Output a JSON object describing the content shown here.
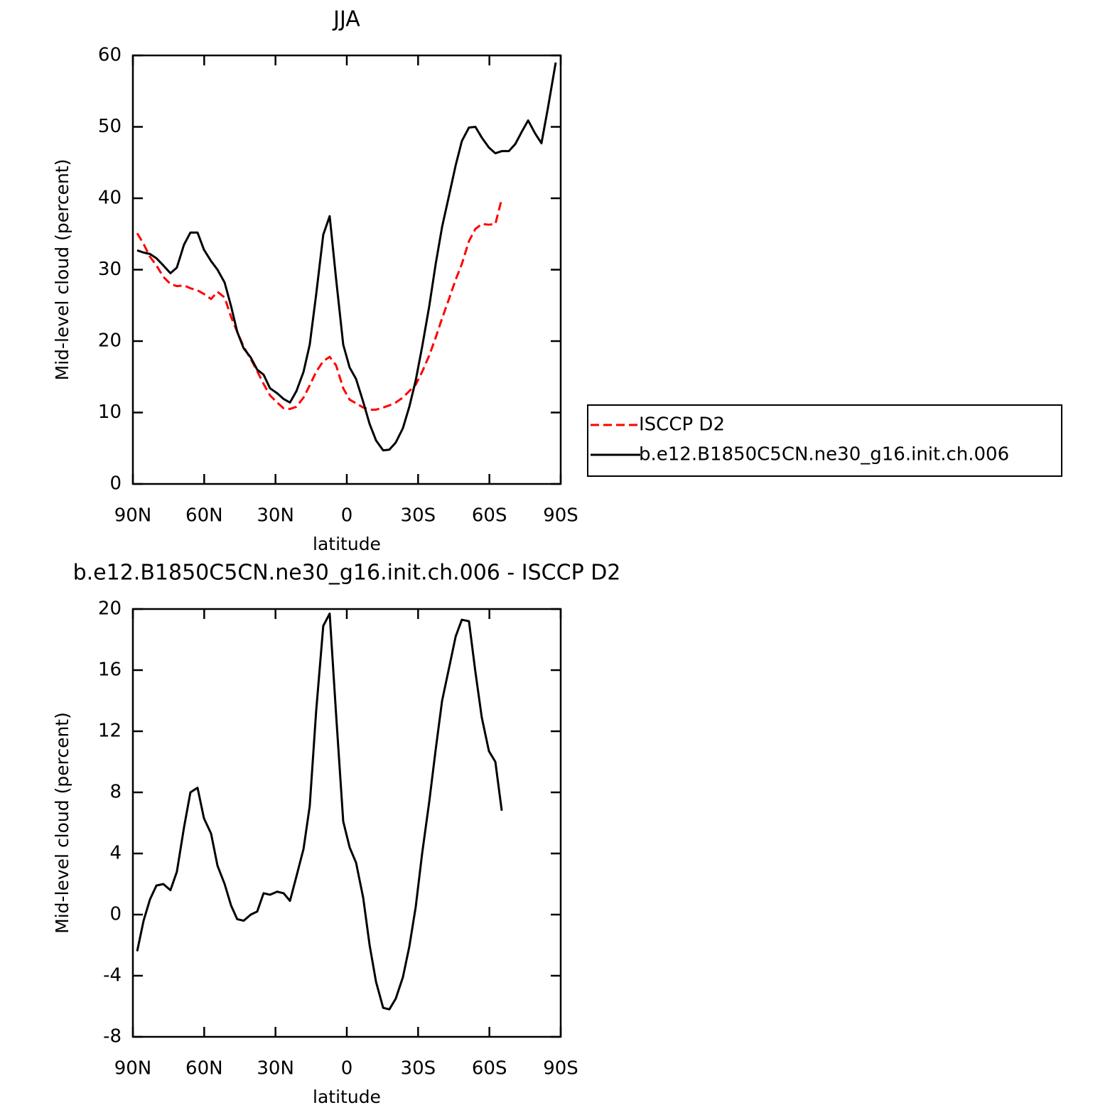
{
  "chart_data": [
    {
      "type": "line",
      "title": "JJA",
      "xlabel": "latitude",
      "ylabel": "Mid-level cloud (percent)",
      "x": [
        88.2,
        85.5,
        82.8,
        80.1,
        77.2,
        74.2,
        71.5,
        68.5,
        65.8,
        62.8,
        60.1,
        57.1,
        54.4,
        51.4,
        48.7,
        46.1,
        43.4,
        40.4,
        37.7,
        35.0,
        32.3,
        29.3,
        26.6,
        23.9,
        21.2,
        18.2,
        15.6,
        12.9,
        9.9,
        7.2,
        4.5,
        1.5,
        -1.2,
        -3.9,
        -6.9,
        -9.6,
        -12.3,
        -15.3,
        -17.9,
        -20.6,
        -23.6,
        -26.3,
        -29.0,
        -31.7,
        -34.7,
        -37.4,
        -40.1,
        -43.1,
        -45.8,
        -48.4,
        -51.4,
        -54.1,
        -56.8,
        -59.8,
        -62.5,
        -65.2,
        -68.2,
        -70.9,
        -73.6,
        -76.3,
        -79.2,
        -81.9,
        -84.6,
        -87.9
      ],
      "series": [
        {
          "name": "ISCCP D2",
          "color": "#ff0000",
          "dashed": true,
          "values": [
            35.1,
            33.6,
            31.8,
            30.6,
            29.0,
            28.0,
            27.7,
            27.8,
            27.4,
            27.1,
            26.6,
            25.9,
            26.9,
            26.1,
            23.4,
            21.3,
            19.2,
            17.5,
            15.8,
            14.0,
            12.4,
            11.4,
            10.6,
            10.5,
            10.8,
            12.1,
            13.8,
            15.7,
            17.2,
            17.8,
            16.6,
            13.4,
            11.8,
            11.3,
            10.7,
            10.4,
            10.4,
            10.7,
            11.0,
            11.4,
            12.1,
            13.0,
            13.9,
            15.7,
            18.0,
            20.5,
            23.2,
            26.0,
            28.6,
            30.8,
            34.0,
            35.7,
            36.4,
            36.3,
            36.4,
            39.9,
            null,
            null,
            null,
            null,
            null,
            null,
            null,
            null
          ]
        },
        {
          "name": "b.e12.B1850C5CN.ne30_g16.init.ch.006",
          "color": "#000000",
          "dashed": false,
          "values": [
            32.7,
            32.4,
            32.2,
            31.6,
            30.6,
            29.5,
            30.3,
            33.5,
            35.2,
            35.2,
            32.8,
            31.2,
            30.0,
            28.2,
            24.9,
            21.3,
            19.0,
            17.7,
            16.0,
            15.3,
            13.4,
            12.7,
            11.9,
            11.4,
            13.0,
            15.7,
            19.5,
            26.5,
            34.9,
            37.5,
            28.7,
            19.5,
            16.3,
            14.7,
            11.5,
            8.4,
            6.1,
            4.7,
            4.8,
            5.8,
            7.8,
            10.8,
            14.5,
            19.2,
            24.9,
            30.8,
            36.0,
            40.5,
            44.6,
            48.0,
            49.9,
            50.0,
            48.5,
            47.1,
            46.3,
            46.6,
            46.6,
            47.6,
            49.3,
            50.9,
            49.1,
            47.7,
            52.6,
            59.0
          ]
        }
      ],
      "xlim": [
        90,
        -90
      ],
      "xticks": [
        {
          "value": 90,
          "label": "90N"
        },
        {
          "value": 60,
          "label": "60N"
        },
        {
          "value": 30,
          "label": "30N"
        },
        0,
        {
          "value": -30,
          "label": "30S"
        },
        {
          "value": -60,
          "label": "60S"
        },
        {
          "value": -90,
          "label": "90S"
        }
      ],
      "ylim": [
        0,
        60
      ],
      "yticks": [
        0,
        10,
        20,
        30,
        40,
        50,
        60
      ],
      "grid": false,
      "legend": "right"
    },
    {
      "type": "line",
      "title": "b.e12.B1850C5CN.ne30_g16.init.ch.006 - ISCCP D2",
      "xlabel": "latitude",
      "ylabel": "Mid-level cloud (percent)",
      "x": [
        88.2,
        85.5,
        82.8,
        80.1,
        77.2,
        74.2,
        71.5,
        68.5,
        65.8,
        62.8,
        60.1,
        57.1,
        54.4,
        51.4,
        48.7,
        46.1,
        43.4,
        40.4,
        37.7,
        35.0,
        32.3,
        29.3,
        26.6,
        23.9,
        21.2,
        18.2,
        15.6,
        12.9,
        9.9,
        7.2,
        4.5,
        1.5,
        -1.2,
        -3.9,
        -6.9,
        -9.6,
        -12.3,
        -15.3,
        -17.9,
        -20.6,
        -23.6,
        -26.3,
        -29.0,
        -31.7,
        -34.7,
        -37.4,
        -40.1,
        -43.1,
        -45.8,
        -48.4,
        -51.4,
        -54.1,
        -56.8,
        -59.8,
        -62.5,
        -65.2,
        -68.2,
        -70.9,
        -73.6,
        -76.3,
        -79.2,
        -81.9,
        -84.6,
        -87.9
      ],
      "values": [
        -2.4,
        -0.4,
        1.0,
        1.9,
        2.0,
        1.6,
        2.8,
        5.7,
        8.0,
        8.3,
        6.3,
        5.3,
        3.2,
        2.0,
        0.6,
        -0.3,
        -0.4,
        0.0,
        0.2,
        1.4,
        1.3,
        1.5,
        1.4,
        0.9,
        2.5,
        4.3,
        7.1,
        13.3,
        18.9,
        19.7,
        13.1,
        6.1,
        4.4,
        3.4,
        1.1,
        -2.0,
        -4.4,
        -6.1,
        -6.2,
        -5.5,
        -4.1,
        -2.1,
        0.5,
        4.0,
        7.4,
        10.8,
        14.0,
        16.2,
        18.2,
        19.3,
        19.2,
        15.9,
        12.9,
        10.7,
        10.0,
        6.8,
        null,
        null,
        null,
        null,
        null,
        null,
        null,
        null
      ],
      "color": "#000000",
      "xlim": [
        90,
        -90
      ],
      "xticks": [
        {
          "value": 90,
          "label": "90N"
        },
        {
          "value": 60,
          "label": "60N"
        },
        {
          "value": 30,
          "label": "30N"
        },
        0,
        {
          "value": -30,
          "label": "30S"
        },
        {
          "value": -60,
          "label": "60S"
        },
        {
          "value": -90,
          "label": "90S"
        }
      ],
      "ylim": [
        -8,
        20
      ],
      "yticks": [
        -8,
        -4,
        0,
        4,
        8,
        12,
        16,
        20
      ],
      "grid": false
    }
  ]
}
